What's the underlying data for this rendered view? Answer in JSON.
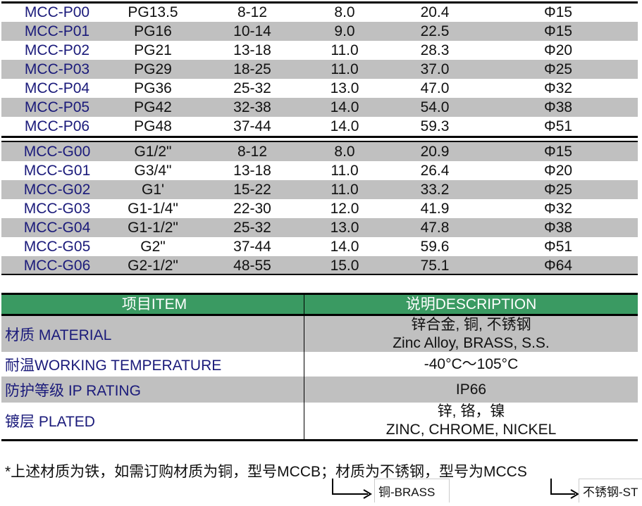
{
  "pg_rows": [
    [
      "MCC-P00",
      "PG13.5",
      "8-12",
      "8.0",
      "20.4",
      "Φ15"
    ],
    [
      "MCC-P01",
      "PG16",
      "10-14",
      "9.0",
      "22.5",
      "Φ15"
    ],
    [
      "MCC-P02",
      "PG21",
      "13-18",
      "11.0",
      "28.3",
      "Φ20"
    ],
    [
      "MCC-P03",
      "PG29",
      "18-25",
      "11.0",
      "37.0",
      "Φ25"
    ],
    [
      "MCC-P04",
      "PG36",
      "25-32",
      "13.0",
      "47.0",
      "Φ32"
    ],
    [
      "MCC-P05",
      "PG42",
      "32-38",
      "14.0",
      "54.0",
      "Φ38"
    ],
    [
      "MCC-P06",
      "PG48",
      "37-44",
      "14.0",
      "59.3",
      "Φ51"
    ]
  ],
  "g_rows": [
    [
      "MCC-G00",
      "G1/2\"",
      "8-12",
      "8.0",
      "20.9",
      "Φ15"
    ],
    [
      "MCC-G01",
      "G3/4\"",
      "13-18",
      "11.0",
      "26.4",
      "Φ20"
    ],
    [
      "MCC-G02",
      "G1'",
      "15-22",
      "11.0",
      "33.2",
      "Φ25"
    ],
    [
      "MCC-G03",
      "G1-1/4\"",
      "22-30",
      "12.0",
      "41.9",
      "Φ32"
    ],
    [
      "MCC-G04",
      "G1-1/2\"",
      "25-32",
      "13.0",
      "47.8",
      "Φ38"
    ],
    [
      "MCC-G05",
      "G2\"",
      "37-44",
      "14.0",
      "59.6",
      "Φ51"
    ],
    [
      "MCC-G06",
      "G2-1/2\"",
      "48-55",
      "15.0",
      "75.1",
      "Φ64"
    ]
  ],
  "info": {
    "header": {
      "item": "项目ITEM",
      "description": "说明DESCRIPTION"
    },
    "rows": [
      {
        "item": "材质 MATERIAL",
        "desc1": "锌合金, 铜, 不锈钢",
        "desc2": "Zinc Alloy, BRASS, S.S."
      },
      {
        "item": "耐温WORKING TEMPERATURE",
        "desc1": "-40°C～105°C",
        "desc2": ""
      },
      {
        "item": "防护等级 IP RATING",
        "desc1": "IP66",
        "desc2": ""
      },
      {
        "item": "镀层 PLATED",
        "desc1": "锌, 铬，镍",
        "desc2": "ZINC, CHROME, NICKEL"
      }
    ]
  },
  "footnote": "*上述材质为铁，如需订购材质为铜，型号MCCB；材质为不锈钢，型号为MCCS",
  "callouts": {
    "brass": "铜-BRASS",
    "stainless": "不锈钢-ST"
  },
  "colors": {
    "header_green": "#3a9a62",
    "row_gray": "#c0c0c0",
    "model_blue": "#1a1a7a"
  }
}
